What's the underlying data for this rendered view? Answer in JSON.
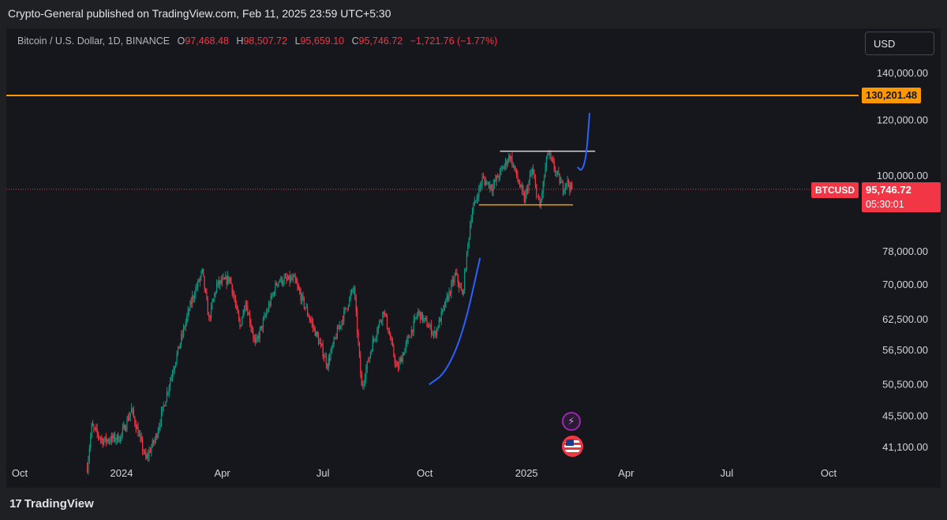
{
  "header": {
    "published": "Crypto-General published on TradingView.com, Feb 11, 2025 23:59 UTC+5:30"
  },
  "legend": {
    "symbol": "Bitcoin / U.S. Dollar, 1D, BINANCE",
    "open_label": "O",
    "open": "97,468.48",
    "high_label": "H",
    "high": "98,507.72",
    "low_label": "L",
    "low": "95,659.10",
    "close_label": "C",
    "close": "95,746.72",
    "change": "−1,721.76 (−1.77%)"
  },
  "currency_button": "USD",
  "price_tags": {
    "level": "130,201.48",
    "symbol": "BTCUSD",
    "last_price": "95,746.72",
    "countdown": "05:30:01"
  },
  "footer": {
    "brand_mark": "17",
    "brand": "TradingView"
  },
  "events": {
    "bolt": "⚡"
  },
  "colors": {
    "up": "#089981",
    "down": "#f23645",
    "level_line": "#ff9800",
    "projection": "#2962ff",
    "box_top": "#d1d4dc",
    "box_bottom": "#ff9800",
    "last_price_line": "#f23645"
  },
  "chart_data": {
    "type": "candlestick",
    "scale": "log",
    "symbol": "BTCUSD",
    "interval": "1D",
    "y_ticks": [
      140000,
      120000,
      100000,
      78000,
      70000,
      62500,
      56500,
      50500,
      45500,
      41100
    ],
    "y_tick_labels": [
      "140,000.00",
      "120,000.00",
      "100,000.00",
      "78,000.00",
      "70,000.00",
      "62,500.00",
      "56,500.00",
      "50,500.00",
      "45,500.00",
      "41,100.00"
    ],
    "x_ticks": [
      "2023-10-01",
      "2024-01-01",
      "2024-04-01",
      "2024-07-01",
      "2024-10-01",
      "2025-01-01",
      "2025-04-01",
      "2025-07-01",
      "2025-10-01"
    ],
    "x_tick_labels": [
      "Oct",
      "2024",
      "Apr",
      "Jul",
      "Oct",
      "2025",
      "Apr",
      "Jul",
      "Oct"
    ],
    "horizontal_level": 130201.48,
    "last_price": 95746.72,
    "price_path": [
      [
        "2023-12-01",
        38500
      ],
      [
        "2023-12-05",
        44000
      ],
      [
        "2023-12-15",
        42000
      ],
      [
        "2023-12-31",
        42500
      ],
      [
        "2024-01-10",
        46500
      ],
      [
        "2024-01-23",
        39500
      ],
      [
        "2024-02-01",
        42500
      ],
      [
        "2024-02-15",
        52000
      ],
      [
        "2024-02-28",
        62000
      ],
      [
        "2024-03-05",
        67000
      ],
      [
        "2024-03-14",
        73000
      ],
      [
        "2024-03-20",
        62500
      ],
      [
        "2024-03-27",
        70000
      ],
      [
        "2024-04-08",
        71500
      ],
      [
        "2024-04-17",
        61000
      ],
      [
        "2024-04-22",
        66500
      ],
      [
        "2024-05-01",
        57500
      ],
      [
        "2024-05-21",
        71000
      ],
      [
        "2024-06-05",
        71200
      ],
      [
        "2024-06-24",
        60000
      ],
      [
        "2024-07-05",
        54000
      ],
      [
        "2024-07-14",
        60000
      ],
      [
        "2024-07-29",
        69500
      ],
      [
        "2024-08-05",
        50000
      ],
      [
        "2024-08-15",
        58000
      ],
      [
        "2024-08-25",
        64500
      ],
      [
        "2024-09-06",
        53000
      ],
      [
        "2024-09-25",
        64000
      ],
      [
        "2024-10-10",
        59500
      ],
      [
        "2024-10-29",
        72500
      ],
      [
        "2024-11-04",
        67500
      ],
      [
        "2024-11-12",
        88000
      ],
      [
        "2024-11-22",
        99000
      ],
      [
        "2024-12-01",
        96500
      ],
      [
        "2024-12-17",
        107000
      ],
      [
        "2024-12-30",
        92500
      ],
      [
        "2025-01-06",
        102000
      ],
      [
        "2025-01-13",
        90000
      ],
      [
        "2025-01-20",
        108000
      ],
      [
        "2025-02-03",
        96000
      ],
      [
        "2025-02-06",
        98500
      ],
      [
        "2025-02-11",
        95746.72
      ]
    ],
    "annotations": {
      "box_top": {
        "from": "2024-12-08",
        "to": "2025-03-04",
        "price": 108500
      },
      "box_bottom": {
        "from": "2024-11-19",
        "to": "2025-02-12",
        "price": 91000
      },
      "projection_past": [
        [
          "2024-10-05",
          50500
        ],
        [
          "2024-10-20",
          52500
        ],
        [
          "2024-11-05",
          60000
        ],
        [
          "2024-11-20",
          76500
        ]
      ],
      "projection_future": [
        [
          "2025-02-16",
          103000
        ],
        [
          "2025-02-20",
          101500
        ],
        [
          "2025-02-24",
          106500
        ],
        [
          "2025-02-27",
          123000
        ]
      ]
    }
  }
}
